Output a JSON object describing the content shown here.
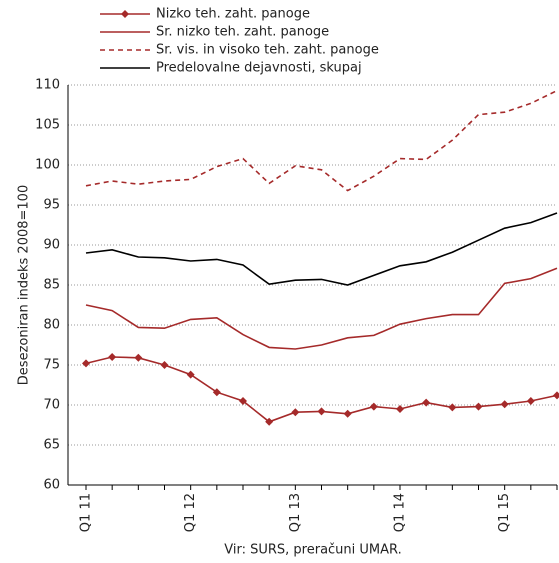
{
  "chart_data": {
    "type": "line",
    "ylabel": "Desezoniran indeks  2008=100",
    "source": "Vir: SURS, preračuni UMAR.",
    "categories": [
      "Q1 11",
      null,
      null,
      null,
      "Q1 12",
      null,
      null,
      null,
      "Q1 13",
      null,
      null,
      null,
      "Q1 14",
      null,
      null,
      null,
      "Q1 15",
      null,
      null
    ],
    "series": [
      {
        "name": "Nizko teh. zaht. panoge",
        "color": "#a52a2a",
        "marker": "diamond",
        "dash": false,
        "values": [
          75.2,
          76.0,
          75.9,
          75.0,
          73.8,
          71.6,
          70.5,
          67.9,
          69.1,
          69.2,
          68.9,
          69.8,
          69.5,
          70.3,
          69.7,
          69.8,
          70.1,
          70.5,
          71.2
        ]
      },
      {
        "name": "Sr. nizko teh. zaht. panoge",
        "color": "#a52a2a",
        "marker": null,
        "dash": false,
        "values": [
          82.5,
          81.8,
          79.7,
          79.6,
          80.7,
          80.9,
          78.8,
          77.2,
          77.0,
          77.5,
          78.4,
          78.7,
          80.1,
          80.8,
          81.3,
          81.3,
          85.2,
          85.8,
          87.1
        ]
      },
      {
        "name": "Sr. vis. in visoko teh. zaht. panoge",
        "color": "#a52a2a",
        "marker": null,
        "dash": true,
        "values": [
          97.4,
          98.0,
          97.6,
          98.0,
          98.2,
          99.8,
          100.8,
          97.7,
          99.9,
          99.4,
          96.8,
          98.6,
          100.8,
          100.7,
          103.1,
          106.3,
          106.6,
          107.7,
          109.3
        ]
      },
      {
        "name": "Predelovalne dejavnosti, skupaj",
        "color": "#000000",
        "marker": null,
        "dash": false,
        "values": [
          89.0,
          89.4,
          88.5,
          88.4,
          88.0,
          88.2,
          87.5,
          85.1,
          85.6,
          85.7,
          85.0,
          86.2,
          87.4,
          87.9,
          89.1,
          90.6,
          92.1,
          92.8,
          94.0
        ]
      }
    ],
    "ylim": [
      60,
      110
    ],
    "yticks": [
      60,
      65,
      70,
      75,
      80,
      85,
      90,
      95,
      100,
      105,
      110
    ],
    "grid": true
  }
}
